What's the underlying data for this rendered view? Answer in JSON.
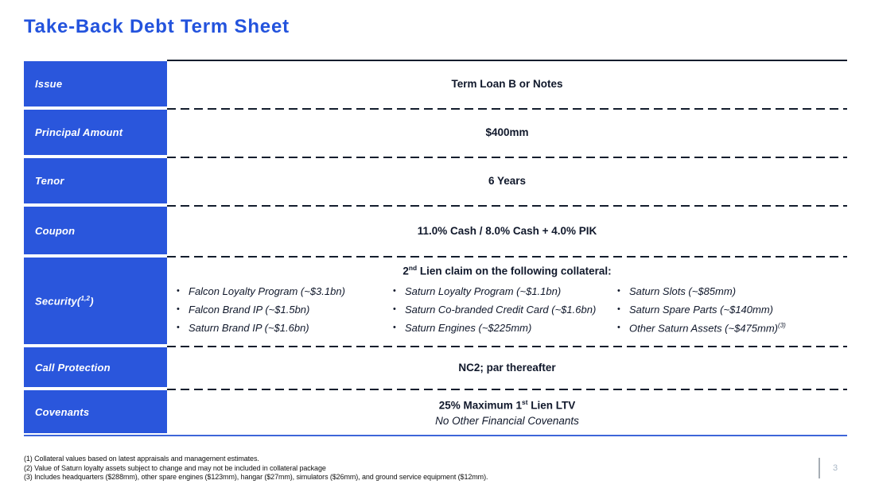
{
  "slide": {
    "title": "Take-Back Debt Term Sheet",
    "page_number": "3"
  },
  "colors": {
    "accent_blue": "#2A56DC",
    "title_blue": "#2353DD",
    "bottom_border_blue": "#3E66D9",
    "rule_dark": "#131D2D",
    "body_text": "#10182B"
  },
  "table": {
    "rows": {
      "issue": {
        "label": "Issue",
        "value": "Term Loan B or Notes"
      },
      "principal": {
        "label": "Principal Amount",
        "value": "$400mm"
      },
      "tenor": {
        "label": "Tenor",
        "value": "6 Years"
      },
      "coupon": {
        "label": "Coupon",
        "value": "11.0% Cash / 8.0% Cash + 4.0% PIK"
      },
      "security": {
        "label_prefix": "Security(",
        "label_sup": "1,2",
        "label_suffix": ")",
        "header_num": "2",
        "header_sup": "nd",
        "header_rest": " Lien claim on the following collateral:",
        "bullet_glyph": "•",
        "columns": [
          {
            "items": [
              {
                "text": "Falcon Loyalty Program (~$3.1bn)",
                "sup": ""
              },
              {
                "text": "Falcon Brand IP (~$1.5bn)",
                "sup": ""
              },
              {
                "text": "Saturn Brand IP (~$1.6bn)",
                "sup": ""
              }
            ]
          },
          {
            "items": [
              {
                "text": "Saturn Loyalty Program (~$1.1bn)",
                "sup": ""
              },
              {
                "text": "Saturn Co-branded Credit Card (~$1.6bn)",
                "sup": ""
              },
              {
                "text": "Saturn Engines (~$225mm)",
                "sup": ""
              }
            ]
          },
          {
            "items": [
              {
                "text": "Saturn Slots (~$85mm)",
                "sup": ""
              },
              {
                "text": "Saturn Spare Parts (~$140mm)",
                "sup": ""
              },
              {
                "text": "Other Saturn Assets (~$475mm)",
                "sup": "(3)"
              }
            ]
          }
        ]
      },
      "call_protection": {
        "label": "Call Protection",
        "value": "NC2; par thereafter"
      },
      "covenants": {
        "label": "Covenants",
        "line1_prefix": "25% Maximum 1",
        "line1_sup": "st",
        "line1_suffix": " Lien LTV",
        "line2": "No Other Financial Covenants"
      }
    }
  },
  "footnotes": [
    "(1) Collateral values based on latest appraisals and management estimates.",
    "(2) Value of Saturn loyalty assets subject to change and may not be included in collateral package",
    "(3) Includes headquarters ($288mm), other spare engines ($123mm), hangar ($27mm), simulators ($26mm), and ground service equipment ($12mm)."
  ]
}
